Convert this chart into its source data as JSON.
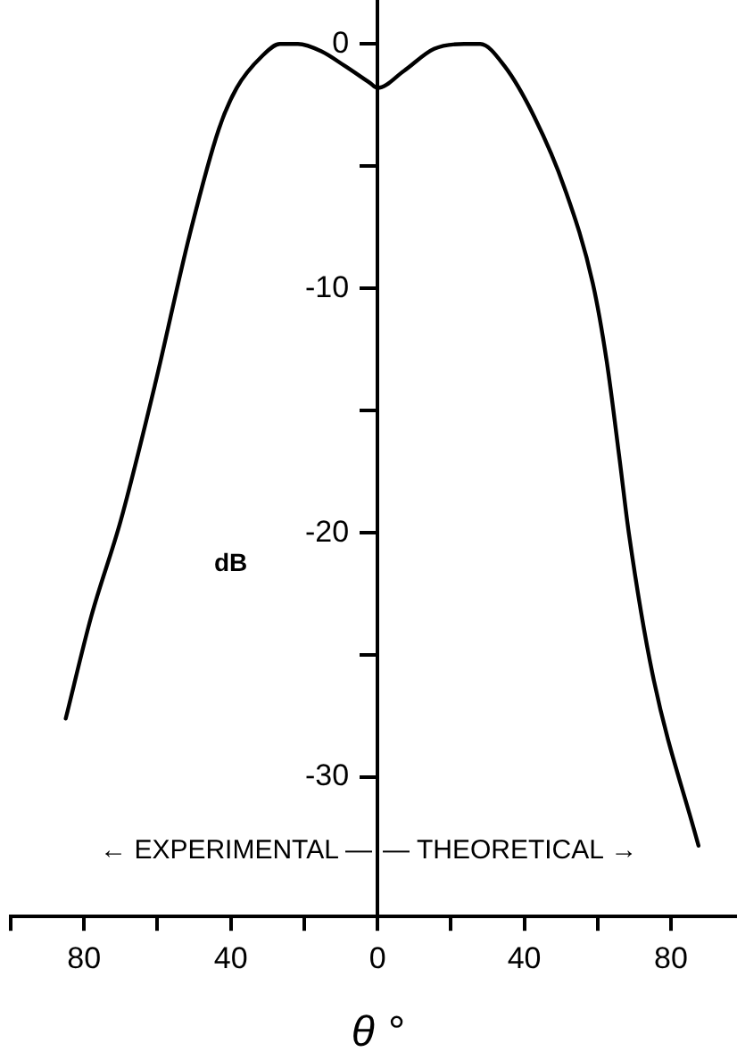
{
  "chart_data": {
    "type": "line",
    "xlabel": "θ °",
    "ylabel": "dB",
    "x": [
      -85,
      -78,
      -70,
      -60.6,
      -51.2,
      -43.3,
      -38.4,
      -31.5,
      -26.6,
      -21.7,
      -15.3,
      -8.9,
      -2,
      0,
      7.2,
      15.4,
      23.6,
      28,
      34.6,
      42.8,
      51,
      58.7,
      62.5,
      66,
      68.5,
      75,
      87.5
    ],
    "series": [
      {
        "color": "#000000",
        "values": [
          -27.6,
          -23.4,
          -19.5,
          -13.9,
          -7.8,
          -3.5,
          -1.8,
          -0.5,
          0,
          0,
          -0.3,
          -0.9,
          -1.6,
          -1.8,
          -1.1,
          -0.2,
          0,
          0,
          -0.9,
          -3,
          -5.9,
          -9.8,
          -13,
          -17,
          -20,
          -25.8,
          -32.8
        ]
      }
    ],
    "xlim": [
      -100,
      98
    ],
    "ylim": [
      -35.7,
      1.8
    ],
    "xticks": [
      {
        "value": -100,
        "label": null
      },
      {
        "value": -80,
        "label": "80"
      },
      {
        "value": -60,
        "label": null
      },
      {
        "value": -40,
        "label": "40"
      },
      {
        "value": -20,
        "label": null
      },
      0,
      {
        "value": 20,
        "label": null
      },
      {
        "value": 40,
        "label": "40"
      },
      {
        "value": 60,
        "label": null
      },
      {
        "value": 80,
        "label": "80"
      }
    ],
    "yticks": [
      0,
      {
        "value": -5,
        "label": null
      },
      -10,
      {
        "value": -15,
        "label": null
      },
      -20,
      {
        "value": -25,
        "label": null
      },
      -30
    ],
    "grid": false,
    "legend": false,
    "marker": "none",
    "line_style": "solid",
    "annotations": [
      "← EXPERIMENTAL —",
      "— THEORETICAL →"
    ]
  }
}
